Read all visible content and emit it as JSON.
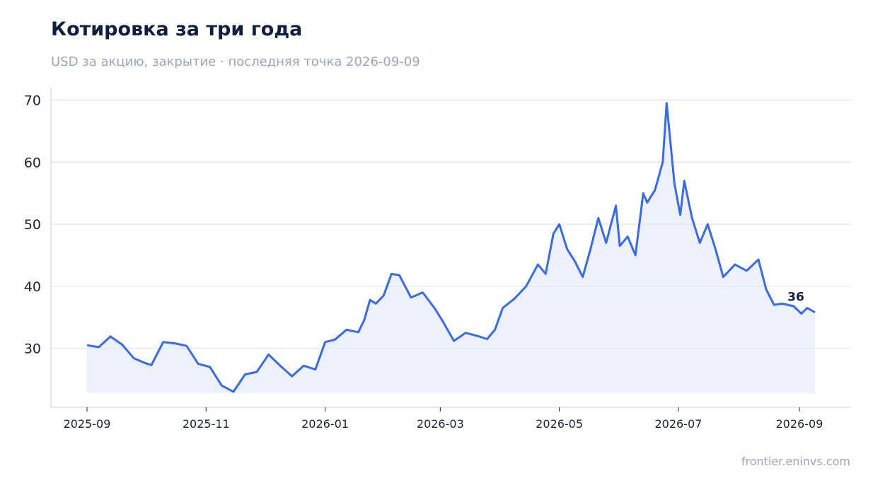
{
  "header": {
    "title": "Котировка за три года",
    "subtitle": "USD за акцию, закрытие · последняя точка 2026-09-09"
  },
  "footer": {
    "source": "frontier.eninvs.com"
  },
  "colors": {
    "line": "#3b6be3",
    "fill": "#dde6fb",
    "grid": "#e3e6ec",
    "axis": "#d5d9e0"
  },
  "chart_data": {
    "type": "area",
    "title": "Котировка за три года",
    "subtitle": "USD за акцию, закрытие · последняя точка 2026-09-09",
    "xlabel": "",
    "ylabel": "",
    "x_start": "2025-09-01",
    "x_end": "2026-09-09",
    "xticks": [
      "2025-09",
      "2025-11",
      "2026-01",
      "2026-03",
      "2026-05",
      "2026-07",
      "2026-09"
    ],
    "yticks": [
      30,
      40,
      50,
      60,
      70
    ],
    "ylim": [
      20.5,
      72
    ],
    "grid": "horizontal",
    "legend": "none",
    "end_label": "36",
    "series": [
      {
        "x": [
          "2025-09-01",
          "2025-09-07",
          "2025-09-13",
          "2025-09-19",
          "2025-09-25",
          "2025-10-01",
          "2025-10-04",
          "2025-10-10",
          "2025-10-16",
          "2025-10-22",
          "2025-10-28",
          "2025-11-03",
          "2025-11-09",
          "2025-11-15",
          "2025-11-21",
          "2025-11-27",
          "2025-12-03",
          "2025-12-09",
          "2025-12-15",
          "2025-12-21",
          "2025-12-27",
          "2026-01-01",
          "2026-01-06",
          "2026-01-12",
          "2026-01-18",
          "2026-01-21",
          "2026-01-24",
          "2026-01-27",
          "2026-01-31",
          "2026-02-04",
          "2026-02-08",
          "2026-02-14",
          "2026-02-20",
          "2026-02-26",
          "2026-03-02",
          "2026-03-08",
          "2026-03-14",
          "2026-03-20",
          "2026-03-25",
          "2026-03-29",
          "2026-04-02",
          "2026-04-08",
          "2026-04-14",
          "2026-04-20",
          "2026-04-24",
          "2026-04-28",
          "2026-05-01",
          "2026-05-05",
          "2026-05-09",
          "2026-05-13",
          "2026-05-17",
          "2026-05-21",
          "2026-05-25",
          "2026-05-30",
          "2026-06-01",
          "2026-06-05",
          "2026-06-09",
          "2026-06-13",
          "2026-06-15",
          "2026-06-19",
          "2026-06-23",
          "2026-06-25",
          "2026-06-29",
          "2026-07-02",
          "2026-07-04",
          "2026-07-08",
          "2026-07-12",
          "2026-07-16",
          "2026-07-20",
          "2026-07-24",
          "2026-07-30",
          "2026-08-05",
          "2026-08-11",
          "2026-08-15",
          "2026-08-19",
          "2026-08-23",
          "2026-08-29",
          "2026-09-02",
          "2026-09-05",
          "2026-09-09"
        ],
        "y": [
          30.5,
          30.2,
          31.9,
          30.6,
          28.4,
          27.6,
          27.3,
          31.0,
          30.8,
          30.4,
          27.5,
          27.0,
          24.0,
          23.0,
          25.8,
          26.2,
          29.0,
          27.2,
          25.5,
          27.2,
          26.6,
          31.0,
          31.4,
          33.0,
          32.6,
          34.5,
          37.8,
          37.2,
          38.5,
          42.0,
          41.8,
          38.2,
          39.0,
          36.5,
          34.5,
          31.2,
          32.5,
          32.0,
          31.5,
          33.0,
          36.5,
          38.0,
          40.0,
          43.5,
          42.0,
          48.5,
          50.0,
          46.0,
          44.0,
          41.5,
          46.0,
          51.0,
          47.0,
          53.0,
          46.5,
          48.0,
          45.0,
          55.0,
          53.5,
          55.5,
          60.0,
          69.5,
          56.5,
          51.5,
          57.0,
          51.0,
          47.0,
          50.0,
          46.0,
          41.5,
          43.5,
          42.5,
          44.3,
          39.5,
          37.0,
          37.2,
          36.8,
          35.6,
          36.5,
          35.8
        ]
      }
    ]
  }
}
